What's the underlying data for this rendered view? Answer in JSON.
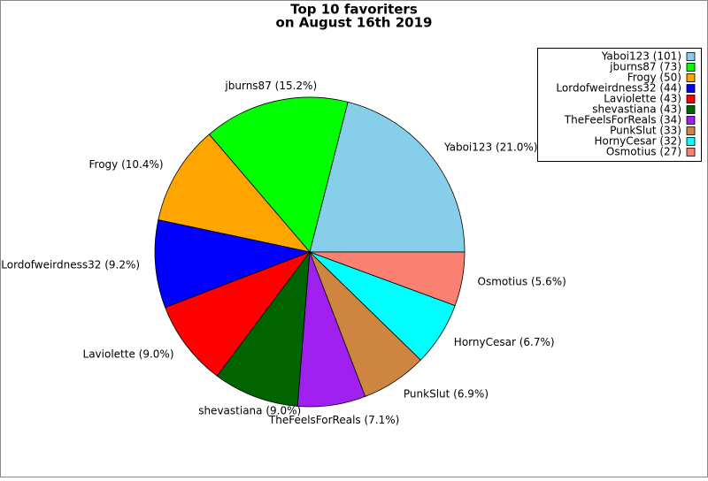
{
  "chart_data": {
    "type": "pie",
    "title": [
      "Top 10 favoriters",
      "on August 16th 2019"
    ],
    "values": [
      101,
      73,
      50,
      44,
      43,
      43,
      34,
      33,
      32,
      27
    ],
    "slice_labels": [
      "Yaboi123 (21.0%)",
      "jburns87 (15.2%)",
      "Frogy (10.4%)",
      "Lordofweirdness32 (9.2%)",
      "Laviolette (9.0%)",
      "shevastiana (9.0%)",
      "TheFeelsForReals (7.1%)",
      "PunkSlut (6.9%)",
      "HornyCesar (6.7%)",
      "Osmotius (5.6%)"
    ],
    "legend_labels": [
      "Yaboi123 (101)",
      "jburns87 (73)",
      "Frogy (50)",
      "Lordofweirdness32 (44)",
      "Laviolette (43)",
      "shevastiana (43)",
      "TheFeelsForReals (34)",
      "PunkSlut (33)",
      "HornyCesar (32)",
      "Osmotius (27)"
    ],
    "colors": [
      "#87ceeb",
      "#00ff00",
      "#ffa500",
      "#0000ff",
      "#ff0000",
      "#006400",
      "#a020f0",
      "#cd853f",
      "#00ffff",
      "#fa8072"
    ],
    "legend": "upper right"
  }
}
